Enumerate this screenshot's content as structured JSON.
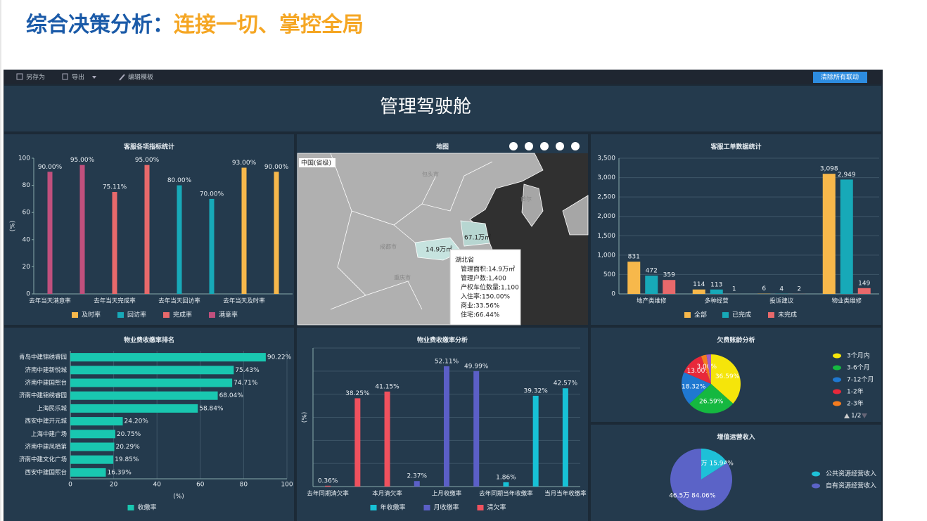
{
  "title": {
    "part1": "综合决策分析：",
    "part2": "连接一切、掌控全局"
  },
  "toolbar": {
    "save_as": "另存为",
    "export": "导出",
    "edit_template": "编辑模板",
    "clear_links": "清除所有联动"
  },
  "header": "管理驾驶舱",
  "map": {
    "title": "地图",
    "level": "中国(省级)",
    "region_labels": [
      "67.1万㎡",
      "14.9万㎡"
    ],
    "places": [
      "包头市",
      "首尔",
      "成都市",
      "重庆市"
    ],
    "tooltip": {
      "title": "湖北省",
      "lines": [
        "管理面积:14.9万㎡",
        "管理户数:1,400",
        "产权车位数量:1,100",
        "入住率:150.00%",
        "商业:33.56%",
        "住宅:66.44%"
      ]
    }
  },
  "chart_data": [
    {
      "type": "bar",
      "title": "客服各项指标统计",
      "y_label": "(%)",
      "categories": [
        "去年当天满意率",
        null,
        "去年当天完成率",
        null,
        "去年当天回访率",
        null,
        "去年当天及时率",
        null
      ],
      "series": [
        {
          "name": "及时率",
          "color": "#f7b84b",
          "values": [
            null,
            null,
            null,
            null,
            null,
            null,
            93,
            90
          ],
          "value_labels": [
            null,
            null,
            null,
            null,
            null,
            null,
            "93.00%",
            "90.00%"
          ]
        },
        {
          "name": "回访率",
          "color": "#17a9b8",
          "values": [
            null,
            null,
            null,
            null,
            80,
            70,
            null,
            null
          ],
          "value_labels": [
            null,
            null,
            null,
            null,
            "80.00%",
            "70.00%",
            null,
            null
          ]
        },
        {
          "name": "完成率",
          "color": "#e8696b",
          "values": [
            null,
            null,
            75.11,
            95,
            null,
            null,
            null,
            null
          ],
          "value_labels": [
            null,
            null,
            "75.11%",
            "95.00%",
            null,
            null,
            null,
            null
          ]
        },
        {
          "name": "满意率",
          "color": "#c1507d",
          "values": [
            90,
            95,
            null,
            null,
            null,
            null,
            null,
            null
          ],
          "value_labels": [
            "90.00%",
            "95.00%",
            null,
            null,
            null,
            null,
            null,
            null
          ]
        }
      ],
      "ylim": [
        0,
        100
      ],
      "yticks": [
        0,
        20,
        40,
        60,
        80,
        100
      ],
      "grid": false
    },
    {
      "type": "bar",
      "title": "客服工单数据统计",
      "categories": [
        "地产类维修",
        "多种经营",
        "投诉建议",
        "物业类维修"
      ],
      "series": [
        {
          "name": "全部",
          "color": "#f7b84b",
          "values": [
            831,
            114,
            6,
            3098
          ],
          "value_labels": [
            "831",
            "114",
            "6",
            "3,098"
          ]
        },
        {
          "name": "已完成",
          "color": "#17a9b8",
          "values": [
            472,
            113,
            4,
            2949
          ],
          "value_labels": [
            "472",
            "113",
            "4",
            "2,949"
          ]
        },
        {
          "name": "未完成",
          "color": "#e8696b",
          "values": [
            359,
            1,
            2,
            149
          ]
        }
      ],
      "ylim": [
        0,
        3500
      ],
      "yticks": [
        0,
        500,
        {
          "value": 1000,
          "label": "1,000"
        },
        {
          "value": 1500,
          "label": "1,500"
        },
        {
          "value": 2000,
          "label": "2,000"
        },
        {
          "value": 2500,
          "label": "2,500"
        },
        {
          "value": 3000,
          "label": "3,000"
        },
        {
          "value": 3500,
          "label": "3,500"
        }
      ],
      "grid": true
    },
    {
      "type": "hbar",
      "title": "物业费收缴率排名",
      "x_label": "(%)",
      "categories": [
        "青岛中建锦绣睿园",
        "济南中建新悦城",
        "济南中建国熙台",
        "济南中建锦绣睿园",
        "上海民乐城",
        "西安中建开元城",
        "上海中建广场",
        "济南中建凤栖第",
        "济南中建文化广场",
        "西安中建国熙台"
      ],
      "series": [
        {
          "name": "收缴率",
          "color": "#19c7b0",
          "values": [
            90.22,
            75.43,
            74.71,
            68.04,
            58.84,
            24.2,
            20.75,
            20.29,
            19.85,
            16.39
          ],
          "value_labels": [
            "90.22%",
            "75.43%",
            "74.71%",
            "68.04%",
            "58.84%",
            "24.20%",
            "20.75%",
            "20.29%",
            "19.85%",
            "16.39%"
          ]
        }
      ],
      "xlim": [
        0,
        100
      ],
      "xticks": [
        0,
        20,
        40,
        60,
        80,
        100
      ],
      "grid": true
    },
    {
      "type": "bar",
      "title": "物业费收缴率分析",
      "y_label": "(%)",
      "categories": [
        "去年同期清欠率",
        null,
        "本月清欠率",
        null,
        "上月收缴率",
        null,
        "去年同期当年收缴率",
        null,
        "当月当年收缴率"
      ],
      "series": [
        {
          "name": "年收缴率",
          "color": "#17c1d6",
          "values": [
            null,
            null,
            null,
            null,
            null,
            null,
            1.86,
            39.32,
            42.57
          ],
          "value_labels": [
            null,
            null,
            null,
            null,
            null,
            null,
            "1.86%",
            "39.32%",
            "42.57%"
          ]
        },
        {
          "name": "月收缴率",
          "color": "#5b5fc7",
          "values": [
            null,
            null,
            null,
            2.37,
            52.11,
            49.99,
            null,
            null,
            null
          ],
          "value_labels": [
            null,
            null,
            null,
            "2.37%",
            "52.11%",
            "49.99%",
            null,
            null,
            null
          ]
        },
        {
          "name": "清欠率",
          "color": "#f0515e",
          "values": [
            0.36,
            38.25,
            41.15,
            null,
            null,
            null,
            null,
            null,
            null
          ],
          "value_labels": [
            "0.36%",
            "38.25%",
            "41.15%",
            null,
            null,
            null,
            null,
            null,
            null
          ]
        }
      ],
      "ylim": [
        0,
        60
      ],
      "yticks": [
        0,
        10,
        20,
        30,
        40,
        50,
        60
      ],
      "show_ytick_labels": false,
      "grid": true
    },
    {
      "type": "pie",
      "title": "欠费账龄分析",
      "categories": [
        "3个月内",
        "3-6个月",
        "7-12个月",
        "1-2年",
        "2-3年",
        null
      ],
      "values": [
        36.59,
        26.59,
        18.32,
        13.0,
        3.0,
        2.5
      ],
      "value_labels": [
        "36.59%",
        "26.59%",
        "18.32%",
        "13.00%",
        "3.00%",
        null
      ],
      "colors": [
        "#f5e50a",
        "#15b840",
        "#1f78d1",
        "#e8283a",
        "#f57c1f",
        "#a05bc8"
      ],
      "legend_page": "1/2"
    },
    {
      "type": "pie",
      "title": "增值运营收入",
      "categories": [
        "公共资源经营收入",
        "自有资源经营收入"
      ],
      "values": [
        8.82,
        46.5
      ],
      "value_labels": [
        "8.82万  15.94%",
        "46.5万  84.06%"
      ],
      "colors": [
        "#1ec0d8",
        "#5b63c7"
      ]
    }
  ]
}
